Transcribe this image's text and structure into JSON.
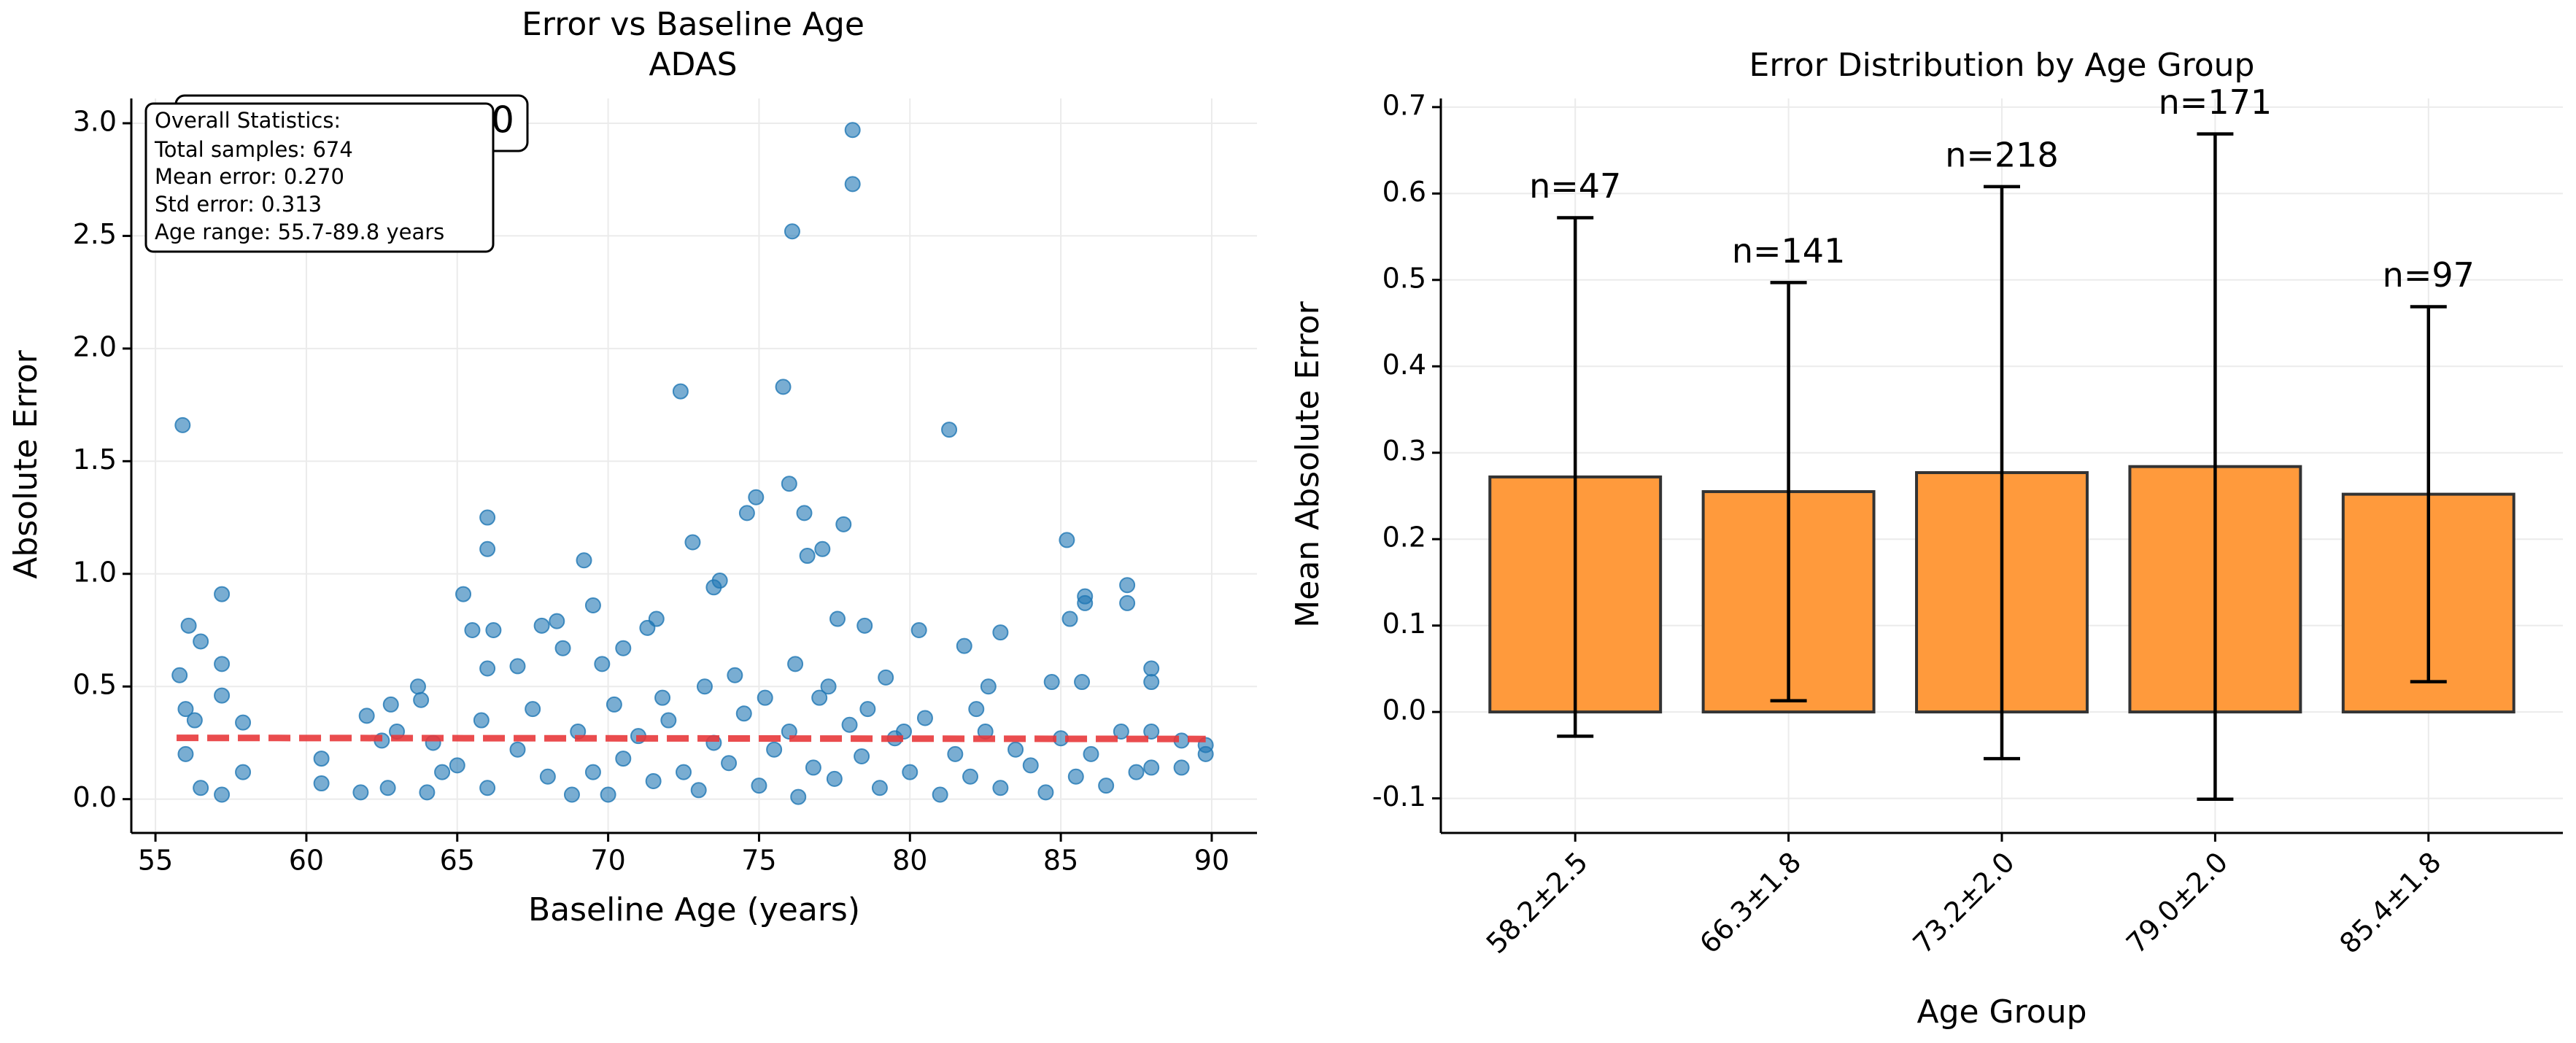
{
  "chart_data": [
    {
      "type": "scatter",
      "title": "Error vs Baseline Age",
      "subtitle": "ADAS",
      "x_label": "Baseline Age (years)",
      "y_label": "Absolute Error",
      "annotations": [
        "n: 0.000",
        "Overall Statistics:",
        "Total samples: 674",
        "Mean error: 0.270",
        "Std error: 0.313",
        "Age range: 55.7-89.8 years"
      ],
      "xlim": [
        54.2,
        91.5
      ],
      "ylim": [
        -0.15,
        3.11
      ],
      "xticks": [
        55,
        60,
        65,
        70,
        75,
        80,
        85,
        90
      ],
      "yticks": [
        {
          "value": 0,
          "label": "0.0"
        },
        0.5,
        {
          "value": 1,
          "label": "1.0"
        },
        1.5,
        {
          "value": 2,
          "label": "2.0"
        },
        2.5,
        {
          "value": 3,
          "label": "3.0"
        }
      ],
      "grid": true,
      "series": [
        {
          "type": "scatter",
          "color": "#1f77b4",
          "x": [
            55.9,
            56.1,
            57.2,
            57.2,
            57.2,
            56.5,
            55.8,
            56.0,
            56.3,
            56.0,
            57.9,
            57.9,
            56.5,
            57.2,
            60.5,
            60.5,
            62,
            62.5,
            62.8,
            63.7,
            63.8,
            64.2,
            64.5,
            65.2,
            65.5,
            66,
            66,
            66.2,
            66,
            67,
            67.8,
            68.3,
            68.5,
            69.2,
            69.5,
            69.8,
            70.5,
            71.3,
            71.6,
            72.4,
            72.8,
            73.5,
            73.7,
            74.6,
            74.9,
            75.8,
            76.1,
            76,
            76.5,
            76.6,
            77.1,
            77.6,
            77.8,
            78.1,
            78.1,
            78.5,
            79.2,
            80.3,
            81.3,
            81.8,
            82.6,
            83,
            84.7,
            85.2,
            85.3,
            85.8,
            85.8,
            85.7,
            87.2,
            87.2,
            88,
            88,
            89.8,
            89.8,
            89,
            89,
            88,
            88,
            64,
            65,
            66,
            67,
            68,
            69,
            70,
            70.5,
            71,
            71.5,
            72,
            72.5,
            73,
            73.5,
            74,
            74.5,
            75,
            75.5,
            76,
            76.3,
            76.8,
            77,
            77.5,
            78,
            78.4,
            79,
            79.5,
            80,
            80.5,
            81,
            81.5,
            82,
            82.5,
            83,
            83.5,
            84,
            84.5,
            85,
            85.5,
            86,
            86.5,
            87,
            87.5,
            63,
            62.7,
            61.8,
            65.8,
            67.5,
            68.8,
            69.5,
            74.2,
            75.2,
            76.2,
            77.3,
            78.6,
            73.2,
            71.8,
            70.2,
            79.8,
            82.2
          ],
          "values": [
            1.66,
            0.77,
            0.91,
            0.6,
            0.46,
            0.7,
            0.55,
            0.4,
            0.35,
            0.2,
            0.34,
            0.12,
            0.05,
            0.02,
            0.18,
            0.07,
            0.37,
            0.26,
            0.42,
            0.5,
            0.44,
            0.25,
            0.12,
            0.91,
            0.75,
            1.25,
            1.11,
            0.75,
            0.58,
            0.59,
            0.77,
            0.79,
            0.67,
            1.06,
            0.86,
            0.6,
            0.67,
            0.76,
            0.8,
            1.81,
            1.14,
            0.94,
            0.97,
            1.27,
            1.34,
            1.83,
            2.52,
            1.4,
            1.27,
            1.08,
            1.11,
            0.8,
            1.22,
            2.97,
            2.73,
            0.77,
            0.54,
            0.75,
            1.64,
            0.68,
            0.5,
            0.74,
            0.52,
            1.15,
            0.8,
            0.9,
            0.87,
            0.52,
            0.95,
            0.87,
            0.58,
            0.52,
            0.24,
            0.2,
            0.26,
            0.14,
            0.3,
            0.14,
            0.03,
            0.15,
            0.05,
            0.22,
            0.1,
            0.3,
            0.02,
            0.18,
            0.28,
            0.08,
            0.35,
            0.12,
            0.04,
            0.25,
            0.16,
            0.38,
            0.06,
            0.22,
            0.3,
            0.01,
            0.14,
            0.45,
            0.09,
            0.33,
            0.19,
            0.05,
            0.27,
            0.12,
            0.36,
            0.02,
            0.2,
            0.1,
            0.3,
            0.05,
            0.22,
            0.15,
            0.03,
            0.27,
            0.1,
            0.2,
            0.06,
            0.3,
            0.12,
            0.3,
            0.05,
            0.03,
            0.35,
            0.4,
            0.02,
            0.12,
            0.55,
            0.45,
            0.6,
            0.5,
            0.4,
            0.5,
            0.45,
            0.42,
            0.3,
            0.4
          ]
        },
        {
          "type": "line",
          "color": "#e8393b",
          "dashed": true,
          "x": [
            55.7,
            89.8
          ],
          "values": [
            0.272,
            0.267
          ]
        }
      ]
    },
    {
      "type": "bar",
      "title": "Error Distribution by Age Group",
      "x_label": "Age Group",
      "y_label": "Mean Absolute Error",
      "categories": [
        "58.2±2.5",
        "66.3±1.8",
        "73.2±2.0",
        "79.0±2.0",
        "85.4±1.8"
      ],
      "values": [
        0.272,
        0.255,
        0.277,
        0.284,
        0.252
      ],
      "errors": [
        0.3,
        0.242,
        0.331,
        0.385,
        0.217
      ],
      "n_labels": [
        "n=47",
        "n=141",
        "n=218",
        "n=171",
        "n=97"
      ],
      "color": "#ff9a3c",
      "edge_color": "#333333",
      "ylim": [
        -0.14,
        0.71
      ],
      "yticks": [
        -0.1,
        {
          "value": 0,
          "label": "0.0"
        },
        0.1,
        0.2,
        0.3,
        0.4,
        0.5,
        0.6,
        0.7
      ],
      "grid": true
    }
  ]
}
